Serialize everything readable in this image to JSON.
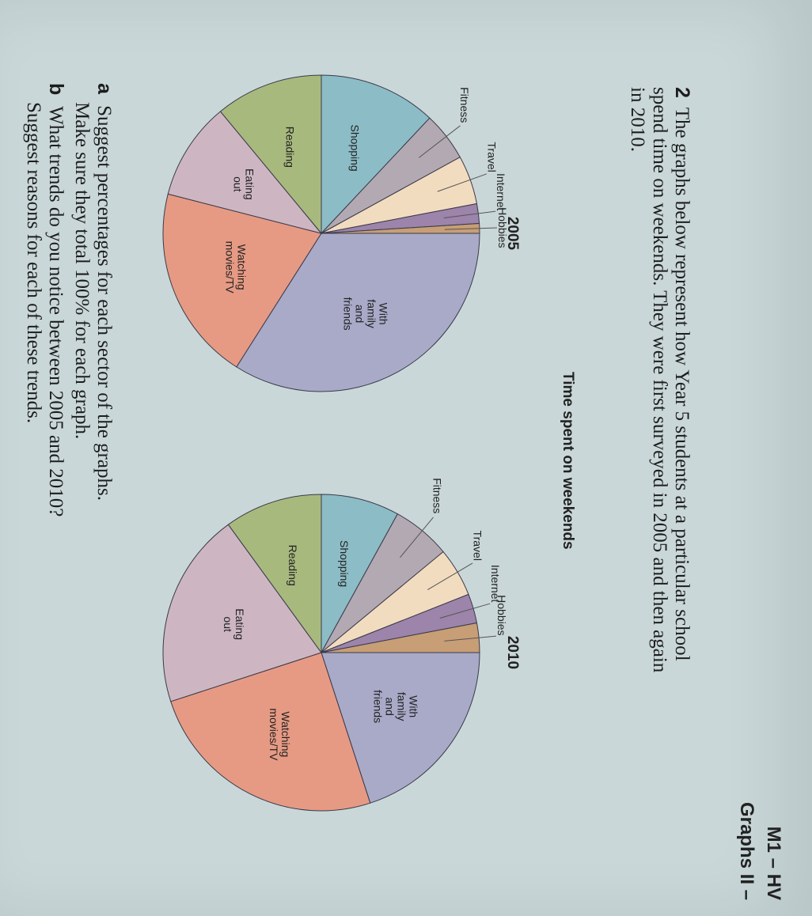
{
  "header": {
    "line1": "M1 – HV",
    "line2": "Graphs II –"
  },
  "question": {
    "number": "2",
    "text": "The graphs below represent how Year 5 students at a particular school spend time on weekends. They were first surveyed in 2005 and then again in 2010."
  },
  "subtitle": "Time spent on weekends",
  "prompts": {
    "a": {
      "letter": "a",
      "line1": "Suggest percentages for each sector of the graphs.",
      "line2": "Make sure they total 100% for each graph."
    },
    "b": {
      "letter": "b",
      "line1": "What trends do you notice between 2005 and 2010?",
      "line2": "Suggest reasons for each of these trends."
    }
  },
  "colors": {
    "With family and friends": "#a8aac8",
    "Watching movies/TV": "#e69a84",
    "Eating out": "#cdb6c2",
    "Reading": "#a8b97e",
    "Shopping": "#8cbcc6",
    "Fitness": "#b3a9b2",
    "Travel": "#f2dcc0",
    "Internet": "#9c84aa",
    "Hobbies": "#c79e76"
  },
  "chart_data": [
    {
      "type": "pie",
      "title": "2005",
      "labels": [
        "With family and friends",
        "Watching movies/TV",
        "Eating out",
        "Reading",
        "Shopping",
        "Fitness",
        "Travel",
        "Internet",
        "Hobbies"
      ],
      "display_labels": [
        [
          "With",
          "family",
          "and",
          "friends"
        ],
        [
          "Watching",
          "movies/TV"
        ],
        [
          "Eating",
          "out"
        ],
        [
          "Reading"
        ],
        [
          "Shopping"
        ],
        [
          "Fitness"
        ],
        [
          "Travel"
        ],
        [
          "Internet"
        ],
        [
          "Hobbies"
        ]
      ],
      "values": [
        34,
        20,
        10,
        11,
        12,
        5,
        5,
        2,
        1
      ],
      "start_angle_deg": 90
    },
    {
      "type": "pie",
      "title": "2010",
      "labels": [
        "With family and friends",
        "Watching movies/TV",
        "Eating out",
        "Reading",
        "Shopping",
        "Fitness",
        "Travel",
        "Internet",
        "Hobbies"
      ],
      "display_labels": [
        [
          "With",
          "family",
          "and",
          "friends"
        ],
        [
          "Watching",
          "movies/TV"
        ],
        [
          "Eating",
          "out"
        ],
        [
          "Reading"
        ],
        [
          "Shopping"
        ],
        [
          "Fitness"
        ],
        [
          "Travel"
        ],
        [
          "Internet"
        ],
        [
          "Hobbies"
        ]
      ],
      "values": [
        20,
        25,
        20,
        10,
        8,
        6,
        5,
        3,
        3
      ],
      "start_angle_deg": 90
    }
  ]
}
